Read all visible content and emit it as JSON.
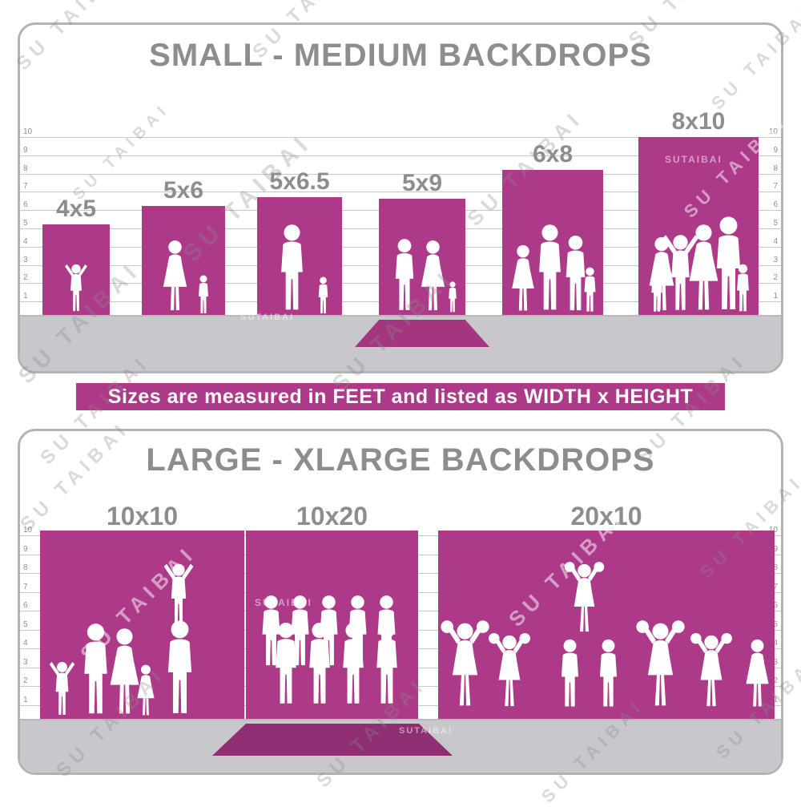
{
  "watermark": {
    "text": "SU TAIBAI",
    "compact": "SUTAIBAI"
  },
  "banner": {
    "text": "Sizes are measured in FEET and listed as WIDTH x HEIGHT"
  },
  "colors": {
    "magenta": "#ad3a88",
    "magenta_dark": "#8f2e72",
    "title_gray": "#8d8d8d",
    "floor_gray": "#c7c7cc"
  },
  "ruler": {
    "ticks": [
      "10",
      "9",
      "8",
      "7",
      "6",
      "5",
      "4",
      "3",
      "2",
      "1"
    ]
  },
  "panels": [
    {
      "title": "SMALL - MEDIUM BACKDROPS",
      "bars": [
        {
          "label": "4x5",
          "width_ft": 4,
          "height_ft": 5
        },
        {
          "label": "5x6",
          "width_ft": 5,
          "height_ft": 6
        },
        {
          "label": "5x6.5",
          "width_ft": 5,
          "height_ft": 6.5
        },
        {
          "label": "5x9",
          "width_ft": 5,
          "height_ft": 9
        },
        {
          "label": "6x8",
          "width_ft": 6,
          "height_ft": 8
        },
        {
          "label": "8x10",
          "width_ft": 8,
          "height_ft": 10
        }
      ]
    },
    {
      "title": "LARGE - XLARGE BACKDROPS",
      "bars": [
        {
          "label": "10x10",
          "width_ft": 10,
          "height_ft": 10
        },
        {
          "label": "10x20",
          "width_ft": 10,
          "height_ft": 20
        },
        {
          "label": "20x10",
          "width_ft": 20,
          "height_ft": 10
        }
      ]
    }
  ]
}
